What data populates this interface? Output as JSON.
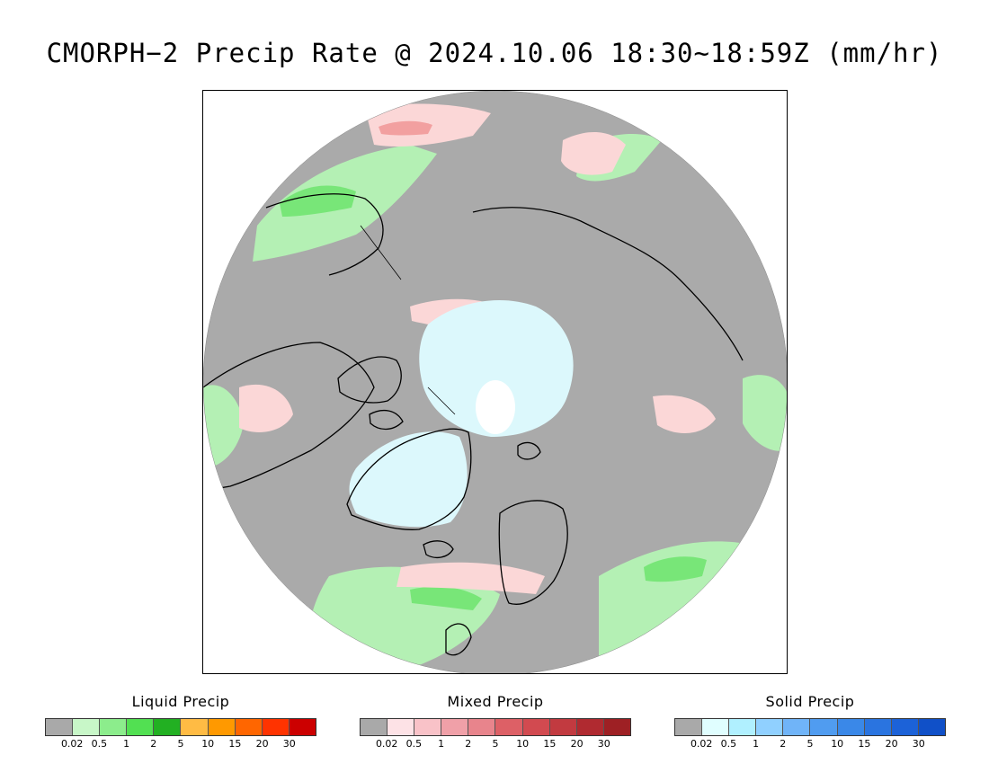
{
  "title": "CMORPH−2 Precip Rate @ 2024.10.06 18:30~18:59Z (mm/hr)",
  "map": {
    "projection": "north-polar-stereographic",
    "colors": {
      "background": "#aaaaaa",
      "liquid_light": "#b4f0b4",
      "liquid_mid": "#78e678",
      "liquid_strong": "#2fbf2f",
      "mixed_light": "#fbd7d7",
      "mixed_mid": "#f2a0a0",
      "solid_light": "#dcf8fc",
      "snow_pole": "#ffffff",
      "coastline": "#000000"
    }
  },
  "legends": [
    {
      "title": "Liquid Precip",
      "colors": [
        "#a9a9a9",
        "#c8f7c8",
        "#8ced8c",
        "#52e052",
        "#22b022",
        "#ffbb44",
        "#ff9900",
        "#ff6600",
        "#ff3300",
        "#cc0000"
      ],
      "ticks": [
        "0.02",
        "0.5",
        "1",
        "2",
        "5",
        "10",
        "15",
        "20",
        "30"
      ]
    },
    {
      "title": "Mixed Precip",
      "colors": [
        "#a9a9a9",
        "#fde2e6",
        "#f9c2c8",
        "#f0a0a8",
        "#e8848c",
        "#dd6066",
        "#d24a50",
        "#c23a40",
        "#b02a30",
        "#9e2024"
      ],
      "ticks": [
        "0.02",
        "0.5",
        "1",
        "2",
        "5",
        "10",
        "15",
        "20",
        "30"
      ]
    },
    {
      "title": "Solid Precip",
      "colors": [
        "#a9a9a9",
        "#e0feff",
        "#b0f0ff",
        "#90d0ff",
        "#70b4f8",
        "#509cf0",
        "#3a88e8",
        "#2a74e0",
        "#1c62d8",
        "#1050c8"
      ],
      "ticks": [
        "0.02",
        "0.5",
        "1",
        "2",
        "5",
        "10",
        "15",
        "20",
        "30"
      ]
    }
  ]
}
